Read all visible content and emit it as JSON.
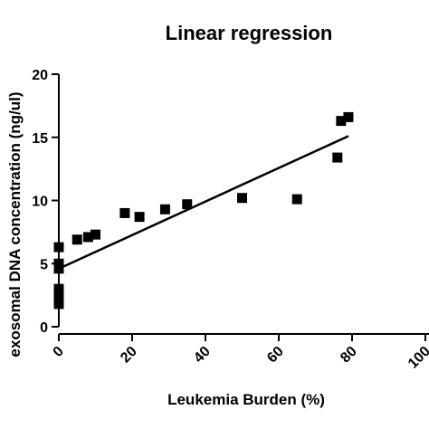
{
  "chart_data": {
    "type": "scatter",
    "title": "Linear regression",
    "xlabel": "Leukemia Burden (%)",
    "ylabel": "exosomal DNA concentration  (ng/ul)",
    "xlim": [
      0,
      100
    ],
    "ylim": [
      0,
      20
    ],
    "x_ticks": [
      "0",
      "20",
      "40",
      "60",
      "80",
      "100"
    ],
    "y_ticks": [
      "0",
      "5",
      "10",
      "15",
      "20"
    ],
    "marker": "square",
    "marker_color": "#000000",
    "points": [
      {
        "x": 0,
        "y": 1.8
      },
      {
        "x": 0,
        "y": 2.2
      },
      {
        "x": 0,
        "y": 2.6
      },
      {
        "x": 0,
        "y": 3.0
      },
      {
        "x": 0,
        "y": 4.6
      },
      {
        "x": 0,
        "y": 5.0
      },
      {
        "x": 0,
        "y": 6.3
      },
      {
        "x": 5,
        "y": 6.9
      },
      {
        "x": 8,
        "y": 7.1
      },
      {
        "x": 10,
        "y": 7.3
      },
      {
        "x": 18,
        "y": 9.0
      },
      {
        "x": 22,
        "y": 8.7
      },
      {
        "x": 29,
        "y": 9.3
      },
      {
        "x": 35,
        "y": 9.7
      },
      {
        "x": 50,
        "y": 10.2
      },
      {
        "x": 65,
        "y": 10.1
      },
      {
        "x": 76,
        "y": 13.4
      },
      {
        "x": 77,
        "y": 16.3
      },
      {
        "x": 79,
        "y": 16.6
      }
    ],
    "regression_line": {
      "x": [
        0,
        79
      ],
      "y": [
        4.6,
        15.1
      ]
    },
    "grid": false,
    "legend": "none"
  }
}
